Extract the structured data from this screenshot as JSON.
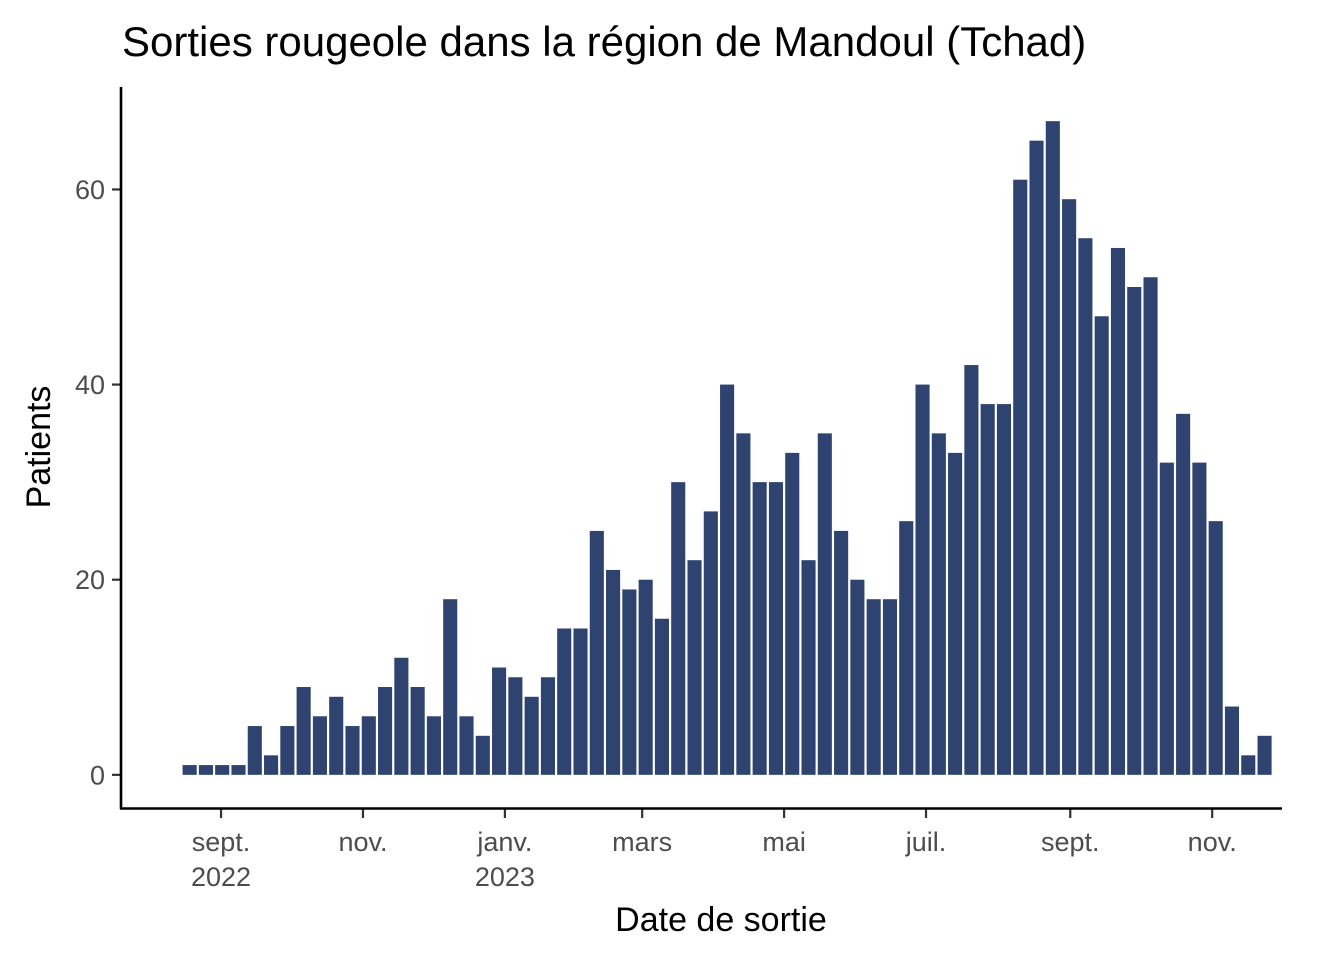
{
  "chart_data": {
    "type": "bar",
    "title": "Sorties rougeole dans la région de Mandoul (Tchad)",
    "xlabel": "Date de sortie",
    "ylabel": "Patients",
    "bar_color": "#2e4370",
    "ylim": [
      -3.4,
      70.5
    ],
    "y_ticks": [
      0,
      20,
      40,
      60
    ],
    "xlim": [
      "2022-07-20",
      "2023-12-01"
    ],
    "x_ticks": [
      {
        "date": "2022-09-01",
        "label": "sept.",
        "sublabel": "2022"
      },
      {
        "date": "2022-11-01",
        "label": "nov.",
        "sublabel": ""
      },
      {
        "date": "2023-01-01",
        "label": "janv.",
        "sublabel": "2023"
      },
      {
        "date": "2023-03-01",
        "label": "mars",
        "sublabel": ""
      },
      {
        "date": "2023-05-01",
        "label": "mai",
        "sublabel": ""
      },
      {
        "date": "2023-07-01",
        "label": "juil.",
        "sublabel": ""
      },
      {
        "date": "2023-09-01",
        "label": "sept.",
        "sublabel": ""
      },
      {
        "date": "2023-11-01",
        "label": "nov.",
        "sublabel": ""
      }
    ],
    "first_week_start": "2022-08-15",
    "week_days": 7,
    "values": [
      1,
      1,
      1,
      1,
      5,
      2,
      5,
      9,
      6,
      8,
      5,
      6,
      9,
      12,
      9,
      6,
      18,
      6,
      4,
      11,
      10,
      8,
      10,
      15,
      15,
      25,
      21,
      19,
      20,
      16,
      30,
      22,
      27,
      40,
      35,
      30,
      30,
      33,
      22,
      35,
      25,
      20,
      18,
      18,
      26,
      40,
      35,
      33,
      42,
      38,
      38,
      61,
      65,
      67,
      59,
      55,
      47,
      54,
      50,
      51,
      32,
      37,
      32,
      26,
      7,
      2,
      4
    ]
  }
}
